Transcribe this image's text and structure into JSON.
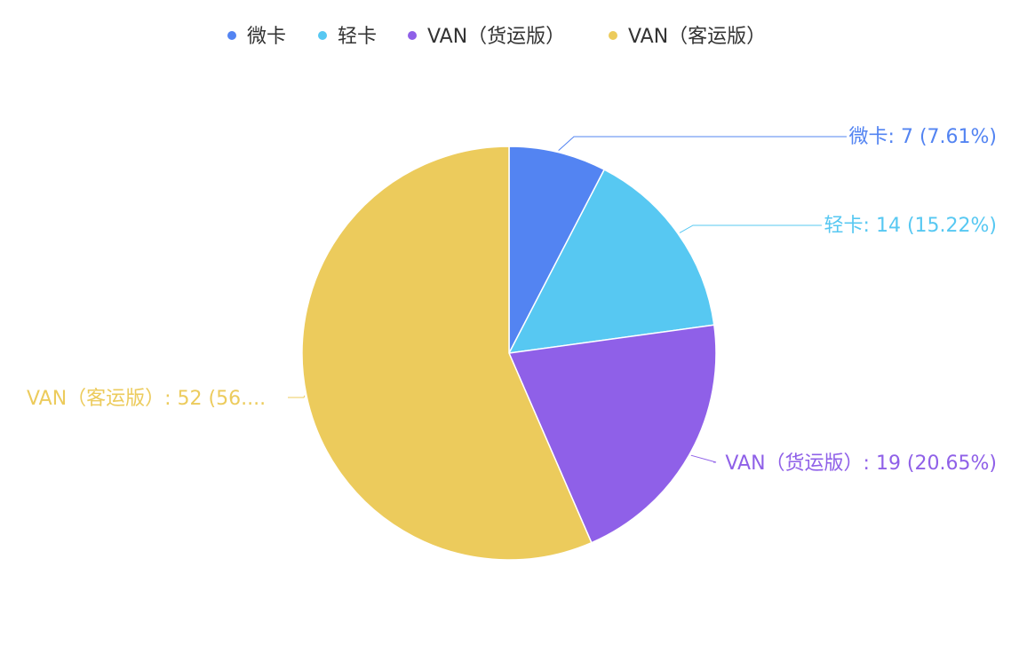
{
  "chart_data": {
    "type": "pie",
    "title": "",
    "legend_position": "top-center",
    "series": [
      {
        "categories": [
          "微卡",
          "轻卡",
          "VAN（货运版）",
          "VAN（客运版）"
        ],
        "values": [
          7,
          14,
          19,
          52
        ],
        "percents": [
          "7.61%",
          "15.22%",
          "20.65%",
          "56.52%"
        ],
        "colors": [
          "#5384f2",
          "#57c8f2",
          "#8f60e8",
          "#eccb5c"
        ],
        "labels": [
          "微卡: 7 (7.61%)",
          "轻卡: 14 (15.22%)",
          "VAN（货运版）: 19 (20.65%)",
          "VAN（客运版）: 52 (56...."
        ]
      }
    ]
  }
}
